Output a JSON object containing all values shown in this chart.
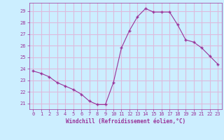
{
  "x": [
    0,
    1,
    2,
    3,
    4,
    5,
    6,
    7,
    8,
    9,
    10,
    11,
    12,
    13,
    14,
    15,
    16,
    17,
    18,
    19,
    20,
    21,
    22,
    23
  ],
  "y": [
    23.8,
    23.6,
    23.3,
    22.8,
    22.5,
    22.2,
    21.8,
    21.2,
    20.9,
    20.9,
    22.8,
    25.8,
    27.3,
    28.5,
    29.2,
    28.9,
    28.9,
    28.9,
    27.8,
    26.5,
    26.3,
    25.8,
    25.1,
    24.4
  ],
  "line_color": "#993399",
  "marker_color": "#993399",
  "bg_color": "#cceeff",
  "grid_color": "#ddbbdd",
  "xlabel": "Windchill (Refroidissement éolien,°C)",
  "xlabel_color": "#993399",
  "tick_color": "#993399",
  "ylim": [
    20.5,
    29.7
  ],
  "xlim": [
    -0.5,
    23.5
  ],
  "yticks": [
    21,
    22,
    23,
    24,
    25,
    26,
    27,
    28,
    29
  ],
  "xticks": [
    0,
    1,
    2,
    3,
    4,
    5,
    6,
    7,
    8,
    9,
    10,
    11,
    12,
    13,
    14,
    15,
    16,
    17,
    18,
    19,
    20,
    21,
    22,
    23
  ]
}
